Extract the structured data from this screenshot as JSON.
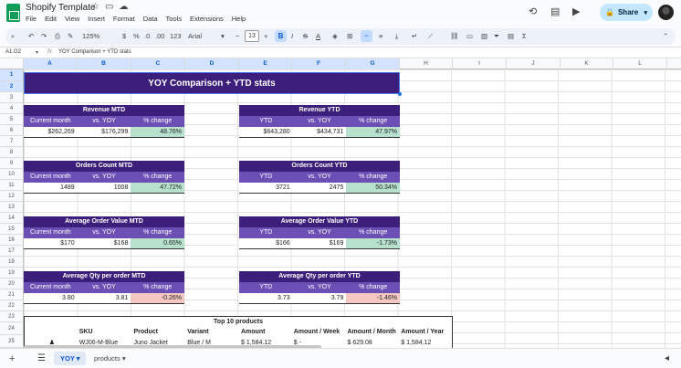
{
  "app": {
    "doc_title": "Shopify Template",
    "menu": [
      "File",
      "Edit",
      "View",
      "Insert",
      "Format",
      "Data",
      "Tools",
      "Extensions",
      "Help"
    ],
    "share_label": "Share"
  },
  "toolbar": {
    "zoom": "125%",
    "currency": "$",
    "percent": "%",
    "dec_dec": ".0",
    "dec_inc": ".00",
    "number_format": "123",
    "font": "Arial",
    "font_size": "13",
    "bold": "B",
    "italic": "I",
    "strike": "S",
    "text_color": "A"
  },
  "formula_bar": {
    "name_box": "A1:G2",
    "formula": "YOY Comparison + YTD stats"
  },
  "columns": [
    "A",
    "B",
    "C",
    "D",
    "E",
    "F",
    "G",
    "H",
    "I",
    "J",
    "K",
    "L"
  ],
  "rows": [
    "1",
    "2",
    "3",
    "4",
    "5",
    "6",
    "7",
    "8",
    "9",
    "10",
    "11",
    "12",
    "13",
    "14",
    "15",
    "16",
    "17",
    "18",
    "19",
    "20",
    "21",
    "22",
    "23",
    "24",
    "25"
  ],
  "banner": "YOY Comparison + YTD stats",
  "blocks": {
    "rev_mtd": {
      "title": "Revenue MTD",
      "h": [
        "Current month",
        "vs. YOY",
        "% change"
      ],
      "v": [
        "$262,269",
        "$176,299",
        "48.76%"
      ]
    },
    "rev_ytd": {
      "title": "Revenue YTD",
      "h": [
        "YTD",
        "vs. YOY",
        "% change"
      ],
      "v": [
        "$643,280",
        "$434,731",
        "47.97%"
      ]
    },
    "orders_mtd": {
      "title": "Orders Count MTD",
      "h": [
        "Current month",
        "vs. YOY",
        "% change"
      ],
      "v": [
        "1489",
        "1008",
        "47.72%"
      ]
    },
    "orders_ytd": {
      "title": "Orders Count YTD",
      "h": [
        "YTD",
        "vs. YOY",
        "% change"
      ],
      "v": [
        "3721",
        "2475",
        "50.34%"
      ]
    },
    "aov_mtd": {
      "title": "Average Order Value MTD",
      "h": [
        "Current month",
        "vs. YOY",
        "% change"
      ],
      "v": [
        "$170",
        "$168",
        "0.65%"
      ]
    },
    "aov_ytd": {
      "title": "Average Order Value YTD",
      "h": [
        "YTD",
        "vs. YOY",
        "% change"
      ],
      "v": [
        "$166",
        "$169",
        "-1.73%"
      ]
    },
    "qty_mtd": {
      "title": "Average Qty per order MTD",
      "h": [
        "Current month",
        "vs. YOY",
        "% change"
      ],
      "v": [
        "3.80",
        "3.81",
        "-0.26%"
      ]
    },
    "qty_ytd": {
      "title": "Average Qty per order YTD",
      "h": [
        "YTD",
        "vs. YOY",
        "% change"
      ],
      "v": [
        "3.73",
        "3.79",
        "-1.46%"
      ]
    }
  },
  "top10": {
    "title": "Top 10 products",
    "headers": [
      "",
      "SKU",
      "Product",
      "Variant",
      "Amount",
      "Amount / Week",
      "Amount / Month",
      "Amount / Year"
    ],
    "row1": [
      "",
      "WJ06-M-Blue",
      "Juno Jacket",
      "Blue / M",
      "$      1,584.12",
      "$      -",
      "$      629.08",
      "$      1,584.12"
    ]
  },
  "sheets": {
    "active": "YOY",
    "other": "products"
  }
}
